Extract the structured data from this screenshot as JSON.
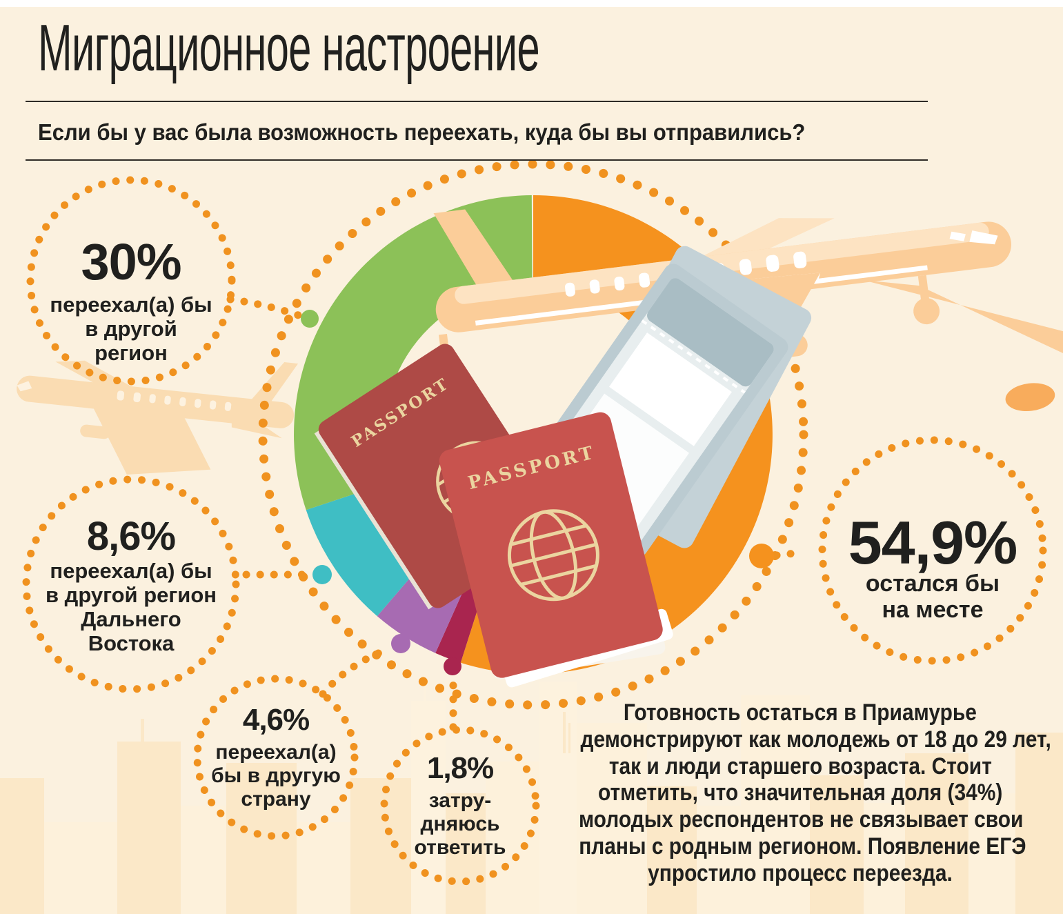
{
  "header": {
    "title": "Миграционное настроение",
    "question": "Если бы у вас была возможность переехать, куда бы вы отправились?"
  },
  "chart_data": {
    "type": "pie",
    "style": "donut",
    "title": "Миграционное настроение",
    "question": "Если бы у вас была возможность переехать, куда бы вы отправились?",
    "unit": "%",
    "start_angle_deg": 0,
    "direction": "clockwise",
    "segments": [
      {
        "label": "остался бы на месте",
        "value": 54.9,
        "display": "54,9%",
        "color": "#F5921E"
      },
      {
        "label": "затрудняюсь ответить",
        "value": 1.8,
        "display": "1,8%",
        "color": "#A9254F"
      },
      {
        "label": "переехал(а) бы в другую страну",
        "value": 4.6,
        "display": "4,6%",
        "color": "#A76BB2"
      },
      {
        "label": "переехал(а) бы в другой регион Дальнего Востока",
        "value": 8.6,
        "display": "8,6%",
        "color": "#3FBEC4"
      },
      {
        "label": "переехал(а) бы в другой регион",
        "value": 30,
        "display": "30%",
        "color": "#8CC158"
      }
    ]
  },
  "callouts": {
    "other_region": {
      "value_display": "30%",
      "lines": [
        "переехал(а) бы",
        "в другой",
        "регион"
      ]
    },
    "far_east_region": {
      "value_display": "8,6%",
      "lines": [
        "переехал(а) бы",
        "в другой регион",
        "Дальнего",
        "Востока"
      ]
    },
    "other_country": {
      "value_display": "4,6%",
      "lines": [
        "переехал(а)",
        "бы в другую",
        "страну"
      ]
    },
    "hard_to_answer": {
      "value_display": "1,8%",
      "lines": [
        "затру-",
        "дняюсь",
        "ответить"
      ]
    },
    "stay": {
      "value_display": "54,9%",
      "lines": [
        "остался бы",
        "на месте"
      ]
    }
  },
  "note": {
    "lines": [
      "Готовность остаться в Приамурье",
      "демонстрируют как молодежь от 18 до 29 лет,",
      "так и люди старшего возраста. Стоит",
      "отметить, что значительная доля (34%)",
      "молодых респондентов не связывает свои",
      "планы с родным регионом. Появление ЕГЭ",
      "упростило процесс переезда."
    ]
  },
  "center_art": {
    "passport_label": "PASSPORT"
  }
}
